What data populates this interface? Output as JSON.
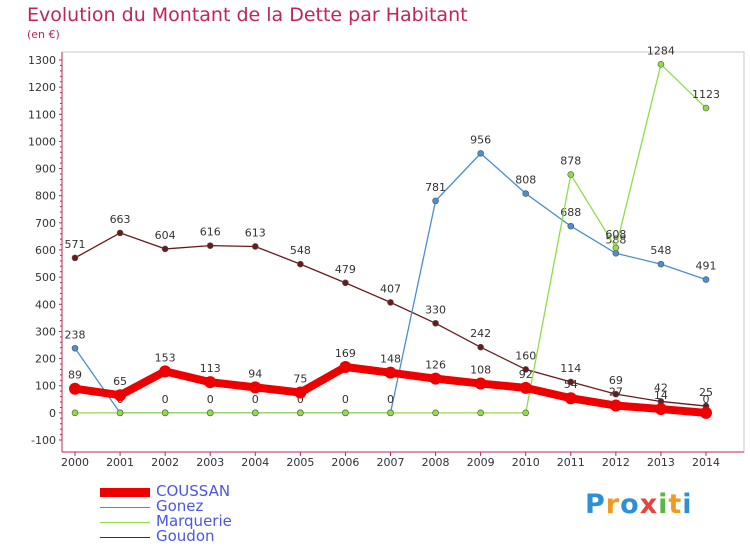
{
  "header": {
    "title": "Evolution du Montant de la Dette par Habitant",
    "unit": "(en €)"
  },
  "logo": {
    "letters": [
      "P",
      "r",
      "o",
      "x",
      "i",
      "t",
      "i"
    ],
    "colors": [
      "#2f8fd6",
      "#f29a1e",
      "#2f8fd6",
      "#e6453c",
      "#56b847",
      "#f29a1e",
      "#2f8fd6"
    ]
  },
  "chart_data": {
    "type": "line",
    "title": "Evolution du Montant de la Dette par Habitant",
    "ylabel": "(en €)",
    "xlabel": "",
    "x": [
      "2000",
      "2001",
      "2002",
      "2003",
      "2004",
      "2005",
      "2006",
      "2007",
      "2008",
      "2009",
      "2010",
      "2011",
      "2012",
      "2013",
      "2014"
    ],
    "ylim": [
      -100,
      1300
    ],
    "yticks": [
      "-100",
      "0",
      "100",
      "200",
      "300",
      "400",
      "500",
      "600",
      "700",
      "800",
      "900",
      "1000",
      "1100",
      "1200",
      "1300"
    ],
    "grid": false,
    "legend_position": "bottom-left",
    "series": [
      {
        "name": "Goudon",
        "color": "#6b1a1a",
        "values": [
          571,
          663,
          604,
          616,
          613,
          548,
          479,
          407,
          330,
          242,
          160,
          114,
          69,
          42,
          25
        ],
        "labels": [
          "571",
          "663",
          "604",
          "616",
          "613",
          "548",
          "479",
          "407",
          "330",
          "242",
          "160",
          "114",
          "69",
          "42",
          "25"
        ]
      },
      {
        "name": "Gonez",
        "color": "#4a8fd0",
        "values": [
          238,
          0,
          0,
          0,
          0,
          0,
          0,
          0,
          781,
          956,
          808,
          688,
          588,
          548,
          491
        ],
        "labels": [
          "238",
          "0",
          "0",
          "0",
          "0",
          "0",
          "0",
          "0",
          "781",
          "956",
          "808",
          "688",
          "588",
          "548",
          "491"
        ]
      },
      {
        "name": "Marquerie",
        "color": "#8fdc4a",
        "values": [
          0,
          0,
          0,
          0,
          0,
          0,
          0,
          0,
          0,
          0,
          0,
          878,
          608,
          1284,
          1123
        ],
        "labels": [
          "",
          "",
          "",
          "",
          "",
          "",
          "",
          "",
          "",
          "",
          "",
          "878",
          "608",
          "1284",
          "1123"
        ]
      },
      {
        "name": "COUSSAN",
        "color": "#ee0000",
        "values": [
          89,
          65,
          153,
          113,
          94,
          75,
          169,
          148,
          126,
          108,
          92,
          54,
          27,
          14,
          0
        ],
        "labels": [
          "89",
          "65",
          "153",
          "113",
          "94",
          "75",
          "169",
          "148",
          "126",
          "108",
          "92",
          "54",
          "27",
          "14",
          "0"
        ]
      }
    ]
  },
  "legend": [
    {
      "label": "COUSSAN",
      "color": "#ee0000",
      "thick": true
    },
    {
      "label": "Gonez",
      "color": "#4a8fd0",
      "thick": false
    },
    {
      "label": "Marquerie",
      "color": "#8fdc4a",
      "thick": false
    },
    {
      "label": "Goudon",
      "color": "#6b1a1a",
      "thick": false
    }
  ]
}
